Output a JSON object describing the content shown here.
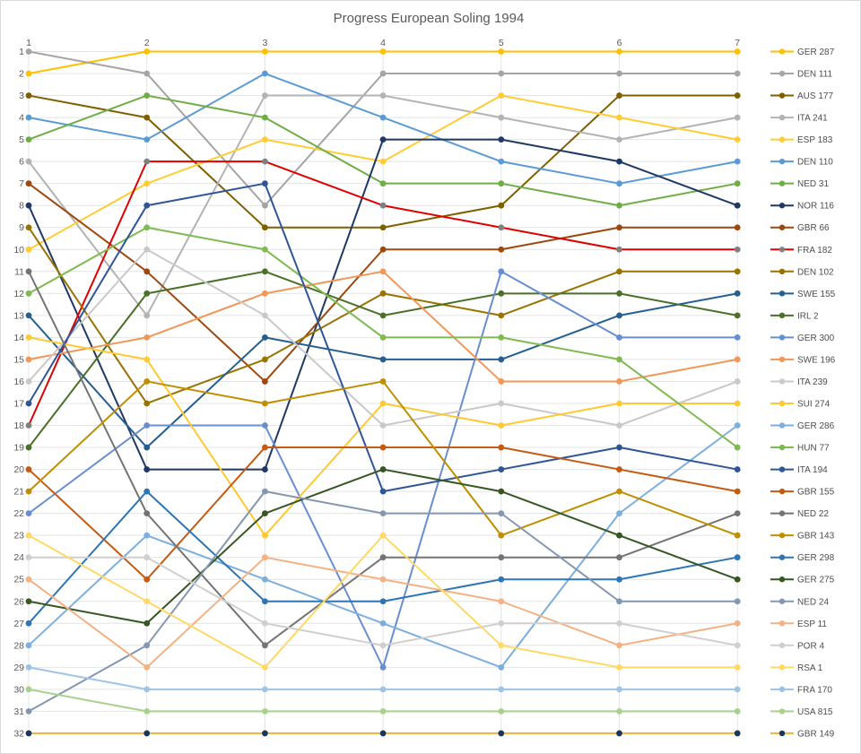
{
  "chart": {
    "frame_color": "#d9d9d9",
    "background_color": "#ffffff",
    "grid_color": "#e4e4e4",
    "axis_text_color": "#595959",
    "title_text_color": "#595959"
  },
  "chart_data": {
    "type": "line",
    "subtype": "bump-chart-positions",
    "title": "Progress European Soling 1994",
    "xlabel": "",
    "ylabel": "",
    "x_categories": [
      "1",
      "2",
      "3",
      "4",
      "5",
      "6",
      "7"
    ],
    "y_tick_labels": [
      "1",
      "2",
      "3",
      "4",
      "5",
      "6",
      "7",
      "8",
      "9",
      "10",
      "11",
      "12",
      "13",
      "14",
      "15",
      "16",
      "17",
      "18",
      "19",
      "20",
      "21",
      "22",
      "23",
      "24",
      "25",
      "26",
      "27",
      "28",
      "29",
      "30",
      "31",
      "32"
    ],
    "y_axis": {
      "min": 1,
      "max": 32,
      "direction": "1 at top, 32 at bottom"
    },
    "x_axis_position": "top",
    "legend_position": "right",
    "grid": "horizontal and vertical light gray",
    "series": [
      {
        "name": "GER 287",
        "color": "#FFC000",
        "marker_color": "#FFC000",
        "values": [
          2,
          1,
          1,
          1,
          1,
          1,
          1
        ]
      },
      {
        "name": "DEN 111",
        "color": "#A5A5A5",
        "marker_color": "#A5A5A5",
        "values": [
          1,
          2,
          8,
          2,
          2,
          2,
          2
        ]
      },
      {
        "name": "AUS 177",
        "color": "#7F6000",
        "marker_color": "#7F6000",
        "values": [
          3,
          4,
          9,
          9,
          8,
          3,
          3
        ]
      },
      {
        "name": "ITA 241",
        "color": "#B3B3B3",
        "marker_color": "#B3B3B3",
        "values": [
          6,
          13,
          3,
          3,
          4,
          5,
          4
        ]
      },
      {
        "name": "ESP 183",
        "color": "#FFCD33",
        "marker_color": "#FFCD33",
        "values": [
          10,
          7,
          5,
          6,
          3,
          4,
          5
        ]
      },
      {
        "name": "DEN 110",
        "color": "#5B9BD5",
        "marker_color": "#5B9BD5",
        "values": [
          4,
          5,
          2,
          4,
          6,
          7,
          6
        ]
      },
      {
        "name": "NED 31",
        "color": "#70AD47",
        "marker_color": "#70AD47",
        "values": [
          5,
          3,
          4,
          7,
          7,
          8,
          7
        ]
      },
      {
        "name": "NOR 116",
        "color": "#1F3864",
        "marker_color": "#1F3864",
        "values": [
          8,
          20,
          20,
          5,
          5,
          6,
          8
        ]
      },
      {
        "name": "GBR 66",
        "color": "#9E480E",
        "marker_color": "#9E480E",
        "values": [
          7,
          11,
          16,
          10,
          10,
          9,
          9
        ]
      },
      {
        "name": "FRA 182",
        "color": "#E00000",
        "marker_color": "#808080",
        "values": [
          18,
          6,
          6,
          8,
          9,
          10,
          10
        ]
      },
      {
        "name": "DEN 102",
        "color": "#997300",
        "marker_color": "#997300",
        "values": [
          9,
          17,
          15,
          12,
          13,
          11,
          11
        ]
      },
      {
        "name": "SWE 155",
        "color": "#255E91",
        "marker_color": "#255E91",
        "values": [
          13,
          19,
          14,
          15,
          15,
          13,
          12
        ]
      },
      {
        "name": "IRL 2",
        "color": "#4A7029",
        "marker_color": "#4A7029",
        "values": [
          19,
          12,
          11,
          13,
          12,
          12,
          13
        ]
      },
      {
        "name": "GER 300",
        "color": "#698ED0",
        "marker_color": "#698ED0",
        "values": [
          22,
          18,
          18,
          29,
          11,
          14,
          14
        ]
      },
      {
        "name": "SWE 196",
        "color": "#F1975A",
        "marker_color": "#F1975A",
        "values": [
          15,
          14,
          12,
          11,
          16,
          16,
          15
        ]
      },
      {
        "name": "ITA 239",
        "color": "#C9C9C9",
        "marker_color": "#C9C9C9",
        "values": [
          16,
          10,
          13,
          18,
          17,
          18,
          16
        ]
      },
      {
        "name": "SUI 274",
        "color": "#FFC933",
        "marker_color": "#FFC933",
        "values": [
          14,
          15,
          23,
          17,
          18,
          17,
          17
        ]
      },
      {
        "name": "GER 286",
        "color": "#7CAFDD",
        "marker_color": "#7CAFDD",
        "values": [
          28,
          23,
          25,
          27,
          29,
          22,
          18
        ]
      },
      {
        "name": "HUN 77",
        "color": "#7FBA51",
        "marker_color": "#7FBA51",
        "values": [
          12,
          9,
          10,
          14,
          14,
          15,
          19
        ]
      },
      {
        "name": "ITA 194",
        "color": "#2F5597",
        "marker_color": "#2F5597",
        "values": [
          17,
          8,
          7,
          21,
          20,
          19,
          20
        ]
      },
      {
        "name": "GBR 155",
        "color": "#C55A11",
        "marker_color": "#C55A11",
        "values": [
          20,
          25,
          19,
          19,
          19,
          20,
          21
        ]
      },
      {
        "name": "NED 22",
        "color": "#747474",
        "marker_color": "#747474",
        "values": [
          11,
          22,
          28,
          24,
          24,
          24,
          22
        ]
      },
      {
        "name": "GBR 143",
        "color": "#BF8F00",
        "marker_color": "#BF8F00",
        "values": [
          21,
          16,
          17,
          16,
          23,
          21,
          23
        ]
      },
      {
        "name": "GER 298",
        "color": "#2E75B6",
        "marker_color": "#2E75B6",
        "values": [
          27,
          21,
          26,
          26,
          25,
          25,
          24
        ]
      },
      {
        "name": "GER 275",
        "color": "#375623",
        "marker_color": "#375623",
        "values": [
          26,
          27,
          22,
          20,
          21,
          23,
          25
        ]
      },
      {
        "name": "NED 24",
        "color": "#8496B0",
        "marker_color": "#8496B0",
        "values": [
          31,
          28,
          21,
          22,
          22,
          26,
          26
        ]
      },
      {
        "name": "ESP 11",
        "color": "#F4B183",
        "marker_color": "#F4B183",
        "values": [
          25,
          29,
          24,
          25,
          26,
          28,
          27
        ]
      },
      {
        "name": "POR 4",
        "color": "#D0CECE",
        "marker_color": "#D0CECE",
        "values": [
          24,
          24,
          27,
          28,
          27,
          27,
          28
        ]
      },
      {
        "name": "RSA 1",
        "color": "#FFD966",
        "marker_color": "#FFD966",
        "values": [
          23,
          26,
          29,
          23,
          28,
          29,
          29
        ]
      },
      {
        "name": "FRA 170",
        "color": "#9DC3E6",
        "marker_color": "#9DC3E6",
        "values": [
          29,
          30,
          30,
          30,
          30,
          30,
          30
        ]
      },
      {
        "name": "USA 815",
        "color": "#A9D18E",
        "marker_color": "#A9D18E",
        "values": [
          30,
          31,
          31,
          31,
          31,
          31,
          31
        ]
      },
      {
        "name": "GBR 149",
        "color": "#EDB23C",
        "marker_color": "#17375E",
        "values": [
          32,
          32,
          32,
          32,
          32,
          32,
          32
        ]
      }
    ]
  }
}
